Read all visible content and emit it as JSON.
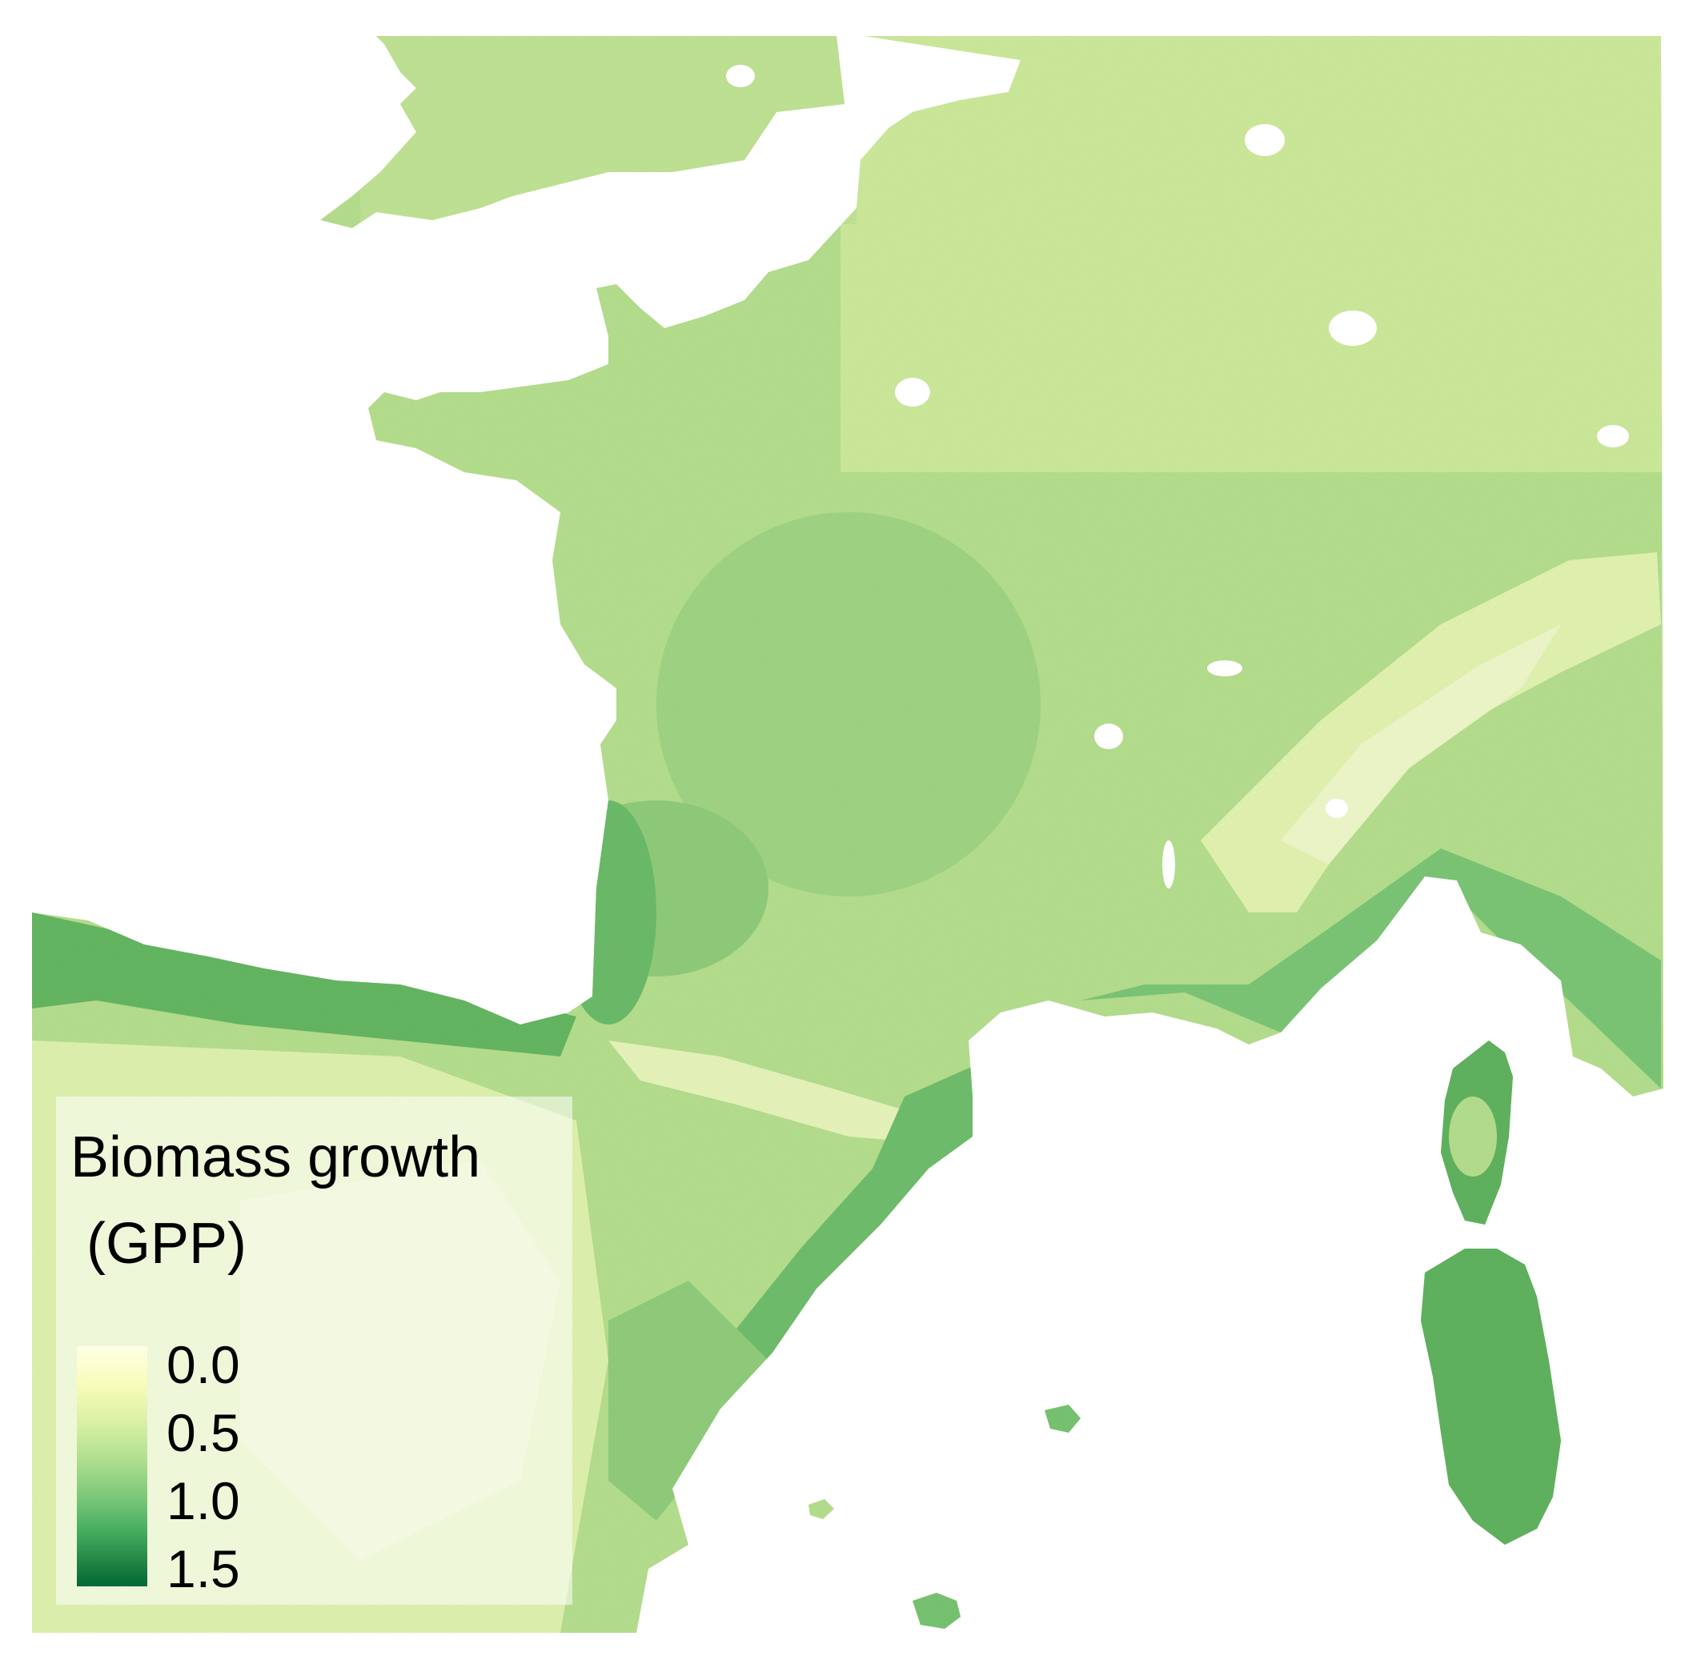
{
  "legend": {
    "title": "Biomass growth\n (GPP)",
    "ticks": [
      "0.0",
      "0.5",
      "1.0",
      "1.5"
    ],
    "range": [
      0.0,
      1.6
    ],
    "colors": [
      "#ffffe5",
      "#f7fcb9",
      "#d9f0a3",
      "#addd8e",
      "#78c679",
      "#41ab5d",
      "#238443",
      "#006837"
    ]
  },
  "map": {
    "variable": "GPP",
    "palette": "YlGn",
    "background": "#ffffff"
  }
}
